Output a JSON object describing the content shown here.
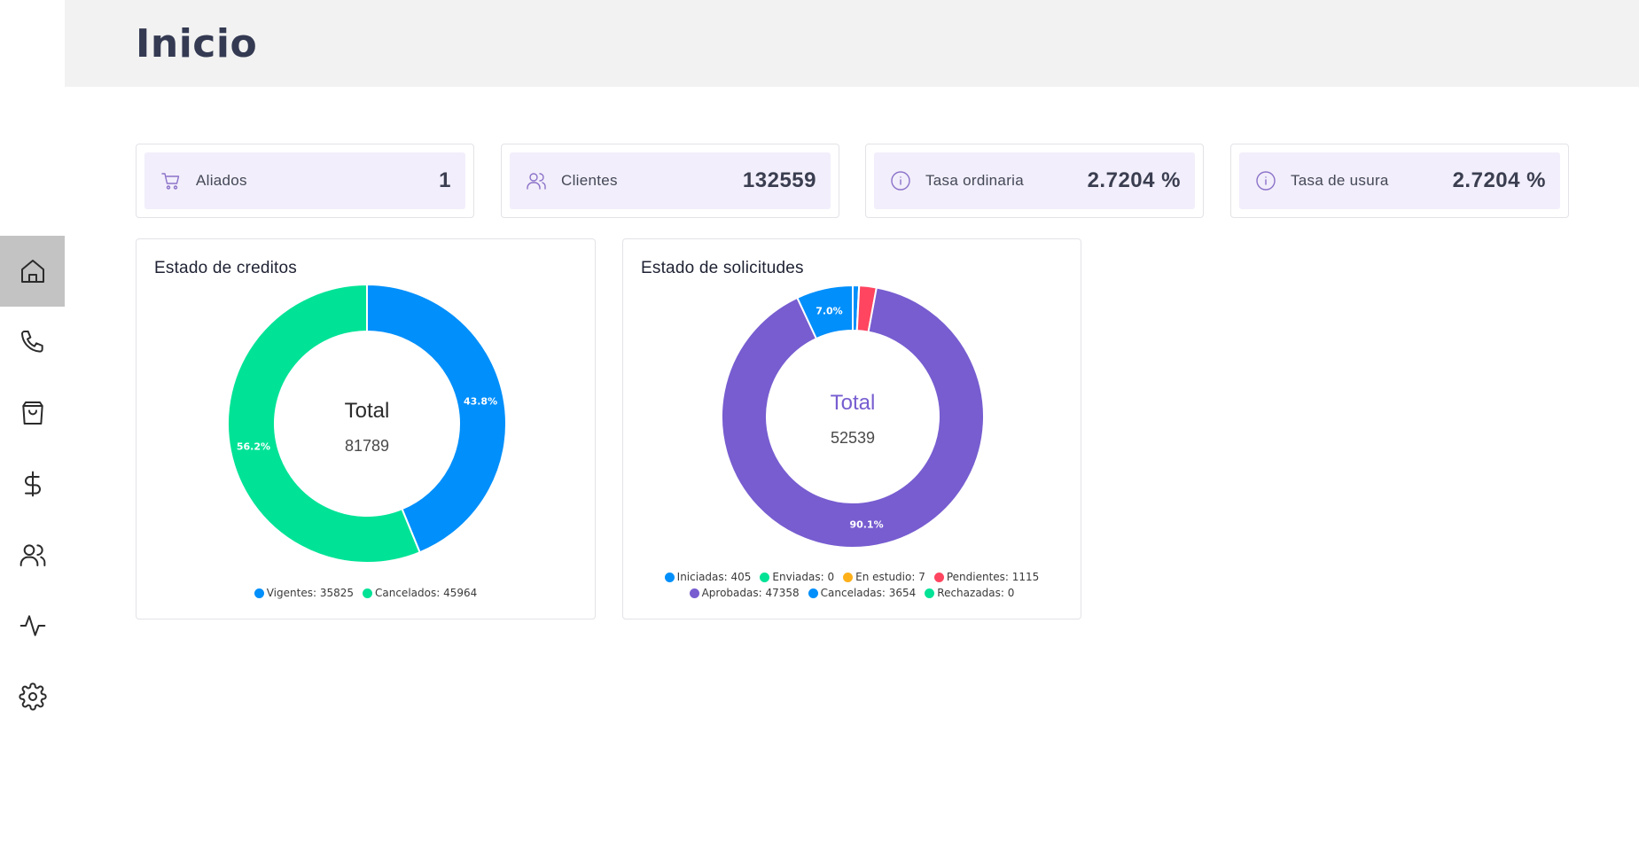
{
  "header": {
    "title": "Inicio"
  },
  "sidebar": {
    "items": [
      {
        "name": "home",
        "icon": "home-icon",
        "active": true
      },
      {
        "name": "phone",
        "icon": "phone-icon",
        "active": false
      },
      {
        "name": "shopping",
        "icon": "shopping-bag-icon",
        "active": false
      },
      {
        "name": "money",
        "icon": "dollar-icon",
        "active": false
      },
      {
        "name": "users",
        "icon": "users-icon",
        "active": false
      },
      {
        "name": "activity",
        "icon": "activity-icon",
        "active": false
      },
      {
        "name": "settings",
        "icon": "gear-icon",
        "active": false
      }
    ]
  },
  "stats": [
    {
      "label": "Aliados",
      "value": "1",
      "icon": "cart-icon"
    },
    {
      "label": "Clientes",
      "value": "132559",
      "icon": "users-icon"
    },
    {
      "label": "Tasa ordinaria",
      "value": "2.7204 %",
      "icon": "info-icon"
    },
    {
      "label": "Tasa de usura",
      "value": "2.7204 %",
      "icon": "info-icon"
    }
  ],
  "charts": {
    "creditos": {
      "title": "Estado de creditos",
      "center_title": "Total",
      "center_value": "81789"
    },
    "solicitudes": {
      "title": "Estado de solicitudes",
      "center_title": "Total",
      "center_value": "52539"
    }
  },
  "chart_data": [
    {
      "type": "pie",
      "title": "Estado de creditos",
      "donut": true,
      "slices": [
        {
          "label": "Vigentes",
          "value": 35825,
          "color": "#008ffb",
          "pct_label": "43.8%",
          "legend": "Vigentes: 35825"
        },
        {
          "label": "Cancelados",
          "value": 45964,
          "color": "#00e396",
          "pct_label": "56.2%",
          "legend": "Cancelados: 45964"
        }
      ],
      "legend_position": "bottom"
    },
    {
      "type": "pie",
      "title": "Estado de solicitudes",
      "donut": true,
      "slices": [
        {
          "label": "Iniciadas",
          "value": 405,
          "color": "#008ffb",
          "pct_label": "",
          "legend": "Iniciadas: 405"
        },
        {
          "label": "Enviadas",
          "value": 0,
          "color": "#00e396",
          "pct_label": "",
          "legend": "Enviadas: 0"
        },
        {
          "label": "En estudio",
          "value": 7,
          "color": "#feb019",
          "pct_label": "",
          "legend": "En estudio: 7"
        },
        {
          "label": "Pendientes",
          "value": 1115,
          "color": "#ff4560",
          "pct_label": "",
          "legend": "Pendientes: 1115"
        },
        {
          "label": "Aprobadas",
          "value": 47358,
          "color": "#775dd0",
          "pct_label": "90.1%",
          "legend": "Aprobadas: 47358"
        },
        {
          "label": "Canceladas",
          "value": 3654,
          "color": "#008ffb",
          "pct_label": "7.0%",
          "legend": "Canceladas: 3654"
        },
        {
          "label": "Rechazadas",
          "value": 0,
          "color": "#00e396",
          "pct_label": "",
          "legend": "Rechazadas: 0"
        }
      ],
      "legend_position": "bottom"
    }
  ]
}
